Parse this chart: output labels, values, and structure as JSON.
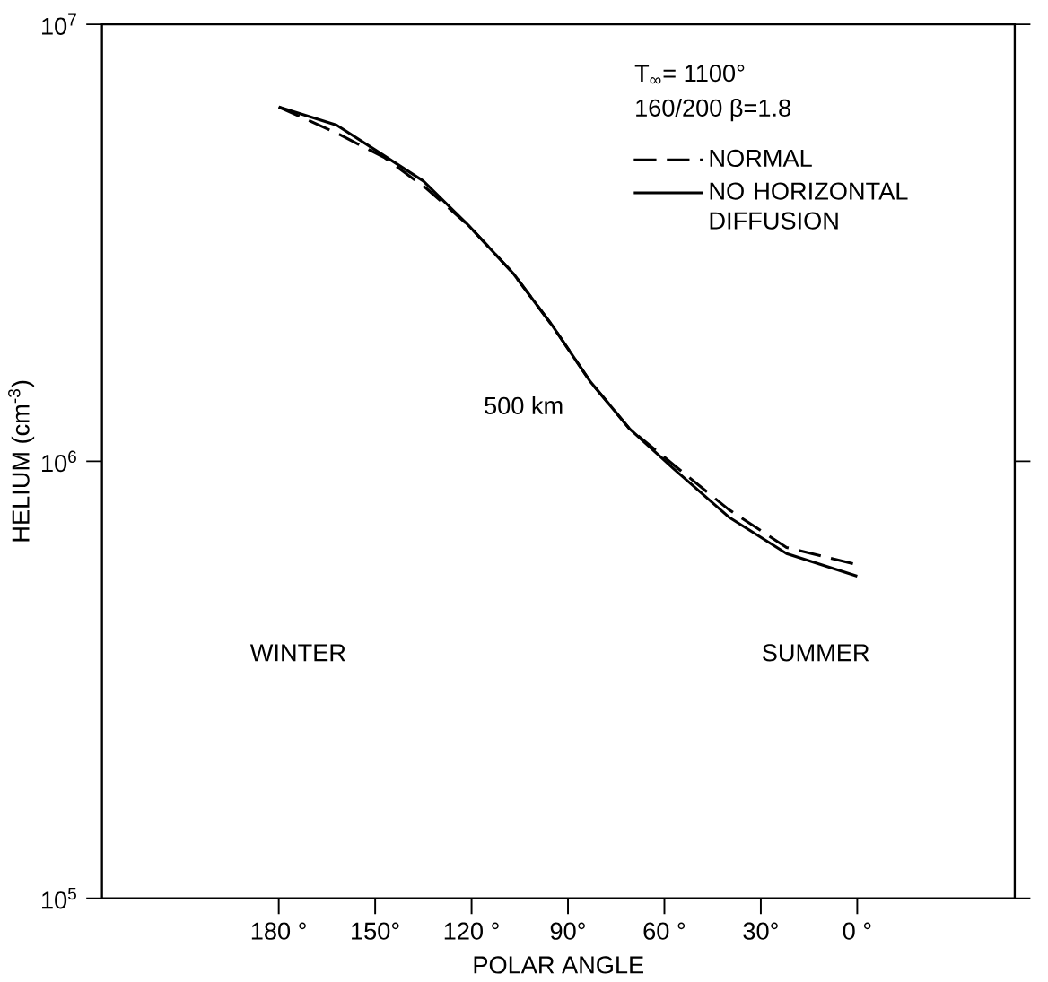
{
  "chart_data": {
    "type": "line",
    "xlabel": "POLAR ANGLE",
    "ylabel": "HELIUM (cm$^{-3}$)",
    "xlim": [
      235,
      -49
    ],
    "ylim": [
      100000,
      10000000
    ],
    "log": "y",
    "xticks": [
      {
        "value": 180,
        "label": "180 °"
      },
      {
        "value": 150,
        "label": "150°"
      },
      {
        "value": 120,
        "label": "120 °"
      },
      {
        "value": 90,
        "label": "90°"
      },
      {
        "value": 60,
        "label": "60 °"
      },
      {
        "value": 30,
        "label": "30°"
      },
      {
        "value": 0,
        "label": "0 °"
      }
    ],
    "yticks": [
      {
        "value": 100000,
        "label": "10$^{5}$"
      },
      {
        "value": 1000000,
        "label": "10$^{6}$"
      },
      {
        "value": 10000000,
        "label": "10$^{7}$"
      }
    ],
    "legend": "top right",
    "grid": false,
    "marker": "none",
    "series": [
      {
        "name": "NORMAL",
        "color": "#000000",
        "line_style": "dashed",
        "x": [
          180,
          162,
          147,
          134,
          121,
          107,
          95,
          83,
          71,
          57,
          40,
          22,
          0
        ],
        "values": [
          6470000,
          5640000,
          4950000,
          4210000,
          3470000,
          2690000,
          2050000,
          1520000,
          1190000,
          980000,
          776000,
          635000,
          580000
        ]
      },
      {
        "name": "NO HORIZONTAL DIFFUSION",
        "color": "#000000",
        "line_style": "solid",
        "x": [
          180,
          162,
          150,
          135,
          121,
          107,
          95,
          83,
          71,
          57,
          40,
          22,
          0
        ],
        "values": [
          6470000,
          5880000,
          5160000,
          4380000,
          3470000,
          2690000,
          2050000,
          1520000,
          1190000,
          960000,
          746000,
          615000,
          546000
        ]
      }
    ],
    "annotations": [
      "T$_{∞}$= 1100°",
      "160/200   β=1.8",
      "500 km",
      "WINTER",
      "SUMMER"
    ]
  }
}
